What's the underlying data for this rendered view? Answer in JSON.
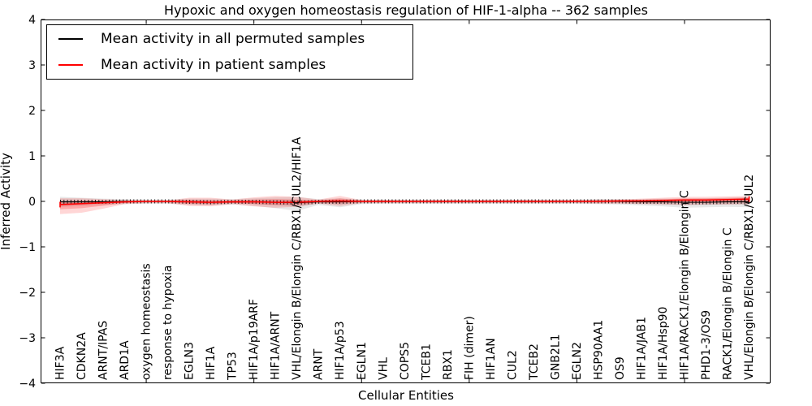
{
  "chart_data": {
    "type": "line",
    "title": "Hypoxic and oxygen homeostasis regulation of HIF-1-alpha -- 362 samples",
    "xlabel": "Cellular Entities",
    "ylabel": "Inferred Activity",
    "ylim": [
      -4,
      4
    ],
    "grid": false,
    "legend_position": "upper left",
    "yticks": [
      {
        "v": 4,
        "label": "4"
      },
      {
        "v": 3,
        "label": "3"
      },
      {
        "v": 2,
        "label": "2"
      },
      {
        "v": 1,
        "label": "1"
      },
      {
        "v": 0,
        "label": "0"
      },
      {
        "v": -1,
        "label": "−1"
      },
      {
        "v": -2,
        "label": "−2"
      },
      {
        "v": -3,
        "label": "−3"
      },
      {
        "v": -4,
        "label": "−4"
      }
    ],
    "x_major_ticks": [
      5,
      10,
      15,
      20,
      25,
      30
    ],
    "categories": [
      "HIF3A",
      "CDKN2A",
      "ARNT/IPAS",
      "ARD1A",
      "oxygen homeostasis",
      "response to hypoxia",
      "EGLN3",
      "HIF1A",
      "TP53",
      "HIF1A/p19ARF",
      "HIF1A/ARNT",
      "VHL/Elongin B/Elongin C/RBX1/CUL2/HIF1A",
      "ARNT",
      "HIF1A/p53",
      "EGLN1",
      "VHL",
      "COPS5",
      "TCEB1",
      "RBX1",
      "FIH (dimer)",
      "HIF1AN",
      "CUL2",
      "TCEB2",
      "GNB2L1",
      "EGLN2",
      "HSP90AA1",
      "OS9",
      "HIF1A/JAB1",
      "HIF1A/Hsp90",
      "HIF1A/RACK1/Elongin B/Elongin C",
      "PHD1-3/OS9",
      "RACK1/Elongin B/Elongin C",
      "VHL/Elongin B/Elongin C/RBX1/CUL2"
    ],
    "series": [
      {
        "name": "Mean activity in all permuted samples",
        "color": "#000000",
        "band_color": "rgba(0,0,0,0.09)",
        "values": [
          -0.01,
          -0.01,
          -0.01,
          0,
          0,
          0,
          -0.01,
          -0.02,
          -0.01,
          -0.01,
          -0.02,
          -0.03,
          -0.01,
          -0.01,
          0,
          0,
          0,
          0,
          0,
          0,
          0,
          0,
          0,
          0,
          0,
          0,
          0,
          -0.01,
          -0.01,
          -0.02,
          -0.02,
          -0.01,
          -0.01
        ],
        "band_upper": [
          0.1,
          0.08,
          0.06,
          0.05,
          0.04,
          0.04,
          0.06,
          0.06,
          0.05,
          0.07,
          0.09,
          0.1,
          0.05,
          0.07,
          0.04,
          0.04,
          0.04,
          0.04,
          0.04,
          0.04,
          0.04,
          0.04,
          0.04,
          0.04,
          0.04,
          0.05,
          0.05,
          0.05,
          0.06,
          0.06,
          0.07,
          0.08,
          0.09
        ],
        "band_lower": [
          -0.12,
          -0.1,
          -0.08,
          -0.06,
          -0.05,
          -0.05,
          -0.08,
          -0.09,
          -0.07,
          -0.1,
          -0.15,
          -0.21,
          -0.08,
          -0.13,
          -0.06,
          -0.05,
          -0.05,
          -0.05,
          -0.05,
          -0.05,
          -0.05,
          -0.05,
          -0.05,
          -0.05,
          -0.05,
          -0.06,
          -0.07,
          -0.09,
          -0.11,
          -0.14,
          -0.13,
          -0.12,
          -0.13
        ]
      },
      {
        "name": "Mean activity in patient samples",
        "color": "#ff0000",
        "band_color": "rgba(255,0,0,0.16)",
        "values": [
          -0.07,
          -0.05,
          -0.03,
          -0.01,
          0,
          0,
          -0.01,
          -0.02,
          -0.01,
          -0.01,
          -0.02,
          -0.02,
          0,
          0.01,
          0,
          0,
          0,
          0,
          0,
          0,
          0,
          0,
          0,
          0,
          0,
          0,
          0.01,
          0.01,
          0.02,
          0.03,
          0.03,
          0.04,
          0.05
        ],
        "band_upper": [
          0.07,
          0.07,
          0.05,
          0.03,
          0.02,
          0.02,
          0.08,
          0.08,
          0.04,
          0.09,
          0.12,
          0.1,
          0.04,
          0.12,
          0.03,
          0.03,
          0.03,
          0.03,
          0.03,
          0.03,
          0.03,
          0.03,
          0.03,
          0.03,
          0.03,
          0.04,
          0.04,
          0.06,
          0.08,
          0.1,
          0.1,
          0.11,
          0.12
        ],
        "band_lower": [
          -0.28,
          -0.25,
          -0.16,
          -0.06,
          -0.04,
          -0.04,
          -0.1,
          -0.11,
          -0.06,
          -0.11,
          -0.14,
          -0.12,
          -0.05,
          -0.1,
          -0.04,
          -0.04,
          -0.04,
          -0.04,
          -0.04,
          -0.04,
          -0.04,
          -0.04,
          -0.04,
          -0.04,
          -0.04,
          -0.05,
          -0.05,
          -0.06,
          -0.07,
          -0.08,
          -0.07,
          -0.07,
          -0.06
        ]
      }
    ]
  }
}
